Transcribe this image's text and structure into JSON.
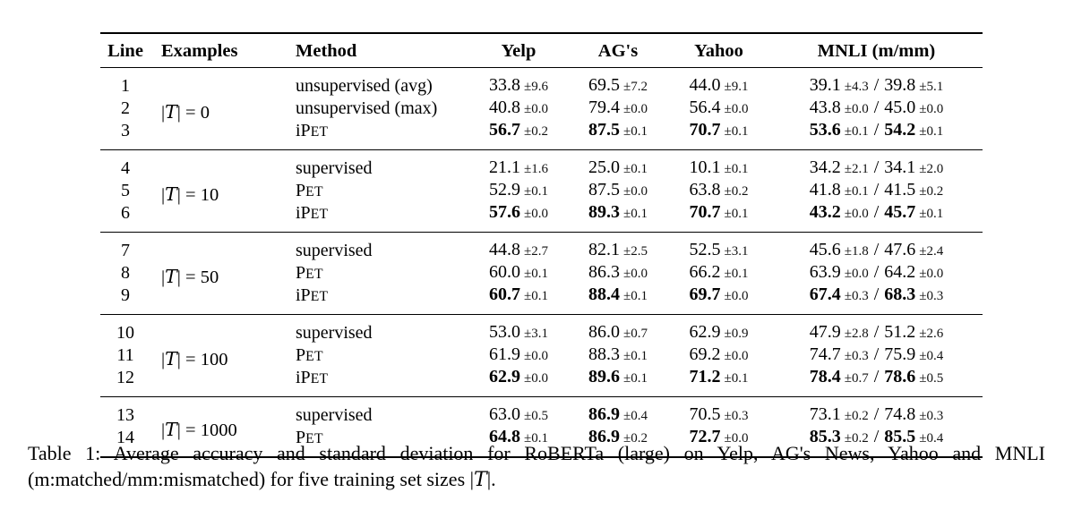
{
  "table": {
    "headers": [
      {
        "key": "line",
        "label": "Line"
      },
      {
        "key": "examples",
        "label": "Examples"
      },
      {
        "key": "method",
        "label": "Method"
      },
      {
        "key": "yelp",
        "label": "Yelp"
      },
      {
        "key": "ags",
        "label": "AG's"
      },
      {
        "key": "yahoo",
        "label": "Yahoo"
      },
      {
        "key": "mnli",
        "label": "MNLI (m/mm)"
      }
    ],
    "pm_symbol": "±",
    "mnli_separator": "/",
    "groups": [
      {
        "examples": "|T| = 0",
        "rows": [
          {
            "line": "1",
            "method": "unsupervised (avg)",
            "yelp": {
              "v": "33.8",
              "sd": "9.6",
              "b": false
            },
            "ags": {
              "v": "69.5",
              "sd": "7.2",
              "b": false
            },
            "yahoo": {
              "v": "44.0",
              "sd": "9.1",
              "b": false
            },
            "mnli": [
              {
                "v": "39.1",
                "sd": "4.3",
                "b": false
              },
              {
                "v": "39.8",
                "sd": "5.1",
                "b": false
              }
            ]
          },
          {
            "line": "2",
            "method": "unsupervised (max)",
            "yelp": {
              "v": "40.8",
              "sd": "0.0",
              "b": false
            },
            "ags": {
              "v": "79.4",
              "sd": "0.0",
              "b": false
            },
            "yahoo": {
              "v": "56.4",
              "sd": "0.0",
              "b": false
            },
            "mnli": [
              {
                "v": "43.8",
                "sd": "0.0",
                "b": false
              },
              {
                "v": "45.0",
                "sd": "0.0",
                "b": false
              }
            ]
          },
          {
            "line": "3",
            "method": "iPET",
            "yelp": {
              "v": "56.7",
              "sd": "0.2",
              "b": true
            },
            "ags": {
              "v": "87.5",
              "sd": "0.1",
              "b": true
            },
            "yahoo": {
              "v": "70.7",
              "sd": "0.1",
              "b": true
            },
            "mnli": [
              {
                "v": "53.6",
                "sd": "0.1",
                "b": true
              },
              {
                "v": "54.2",
                "sd": "0.1",
                "b": true
              }
            ]
          }
        ]
      },
      {
        "examples": "|T| = 10",
        "rows": [
          {
            "line": "4",
            "method": "supervised",
            "yelp": {
              "v": "21.1",
              "sd": "1.6",
              "b": false
            },
            "ags": {
              "v": "25.0",
              "sd": "0.1",
              "b": false
            },
            "yahoo": {
              "v": "10.1",
              "sd": "0.1",
              "b": false
            },
            "mnli": [
              {
                "v": "34.2",
                "sd": "2.1",
                "b": false
              },
              {
                "v": "34.1",
                "sd": "2.0",
                "b": false
              }
            ]
          },
          {
            "line": "5",
            "method": "PET",
            "yelp": {
              "v": "52.9",
              "sd": "0.1",
              "b": false
            },
            "ags": {
              "v": "87.5",
              "sd": "0.0",
              "b": false
            },
            "yahoo": {
              "v": "63.8",
              "sd": "0.2",
              "b": false
            },
            "mnli": [
              {
                "v": "41.8",
                "sd": "0.1",
                "b": false
              },
              {
                "v": "41.5",
                "sd": "0.2",
                "b": false
              }
            ]
          },
          {
            "line": "6",
            "method": "iPET",
            "yelp": {
              "v": "57.6",
              "sd": "0.0",
              "b": true
            },
            "ags": {
              "v": "89.3",
              "sd": "0.1",
              "b": true
            },
            "yahoo": {
              "v": "70.7",
              "sd": "0.1",
              "b": true
            },
            "mnli": [
              {
                "v": "43.2",
                "sd": "0.0",
                "b": true
              },
              {
                "v": "45.7",
                "sd": "0.1",
                "b": true
              }
            ]
          }
        ]
      },
      {
        "examples": "|T| = 50",
        "rows": [
          {
            "line": "7",
            "method": "supervised",
            "yelp": {
              "v": "44.8",
              "sd": "2.7",
              "b": false
            },
            "ags": {
              "v": "82.1",
              "sd": "2.5",
              "b": false
            },
            "yahoo": {
              "v": "52.5",
              "sd": "3.1",
              "b": false
            },
            "mnli": [
              {
                "v": "45.6",
                "sd": "1.8",
                "b": false
              },
              {
                "v": "47.6",
                "sd": "2.4",
                "b": false
              }
            ]
          },
          {
            "line": "8",
            "method": "PET",
            "yelp": {
              "v": "60.0",
              "sd": "0.1",
              "b": false
            },
            "ags": {
              "v": "86.3",
              "sd": "0.0",
              "b": false
            },
            "yahoo": {
              "v": "66.2",
              "sd": "0.1",
              "b": false
            },
            "mnli": [
              {
                "v": "63.9",
                "sd": "0.0",
                "b": false
              },
              {
                "v": "64.2",
                "sd": "0.0",
                "b": false
              }
            ]
          },
          {
            "line": "9",
            "method": "iPET",
            "yelp": {
              "v": "60.7",
              "sd": "0.1",
              "b": true
            },
            "ags": {
              "v": "88.4",
              "sd": "0.1",
              "b": true
            },
            "yahoo": {
              "v": "69.7",
              "sd": "0.0",
              "b": true
            },
            "mnli": [
              {
                "v": "67.4",
                "sd": "0.3",
                "b": true
              },
              {
                "v": "68.3",
                "sd": "0.3",
                "b": true
              }
            ]
          }
        ]
      },
      {
        "examples": "|T| = 100",
        "rows": [
          {
            "line": "10",
            "method": "supervised",
            "yelp": {
              "v": "53.0",
              "sd": "3.1",
              "b": false
            },
            "ags": {
              "v": "86.0",
              "sd": "0.7",
              "b": false
            },
            "yahoo": {
              "v": "62.9",
              "sd": "0.9",
              "b": false
            },
            "mnli": [
              {
                "v": "47.9",
                "sd": "2.8",
                "b": false
              },
              {
                "v": "51.2",
                "sd": "2.6",
                "b": false
              }
            ]
          },
          {
            "line": "11",
            "method": "PET",
            "yelp": {
              "v": "61.9",
              "sd": "0.0",
              "b": false
            },
            "ags": {
              "v": "88.3",
              "sd": "0.1",
              "b": false
            },
            "yahoo": {
              "v": "69.2",
              "sd": "0.0",
              "b": false
            },
            "mnli": [
              {
                "v": "74.7",
                "sd": "0.3",
                "b": false
              },
              {
                "v": "75.9",
                "sd": "0.4",
                "b": false
              }
            ]
          },
          {
            "line": "12",
            "method": "iPET",
            "yelp": {
              "v": "62.9",
              "sd": "0.0",
              "b": true
            },
            "ags": {
              "v": "89.6",
              "sd": "0.1",
              "b": true
            },
            "yahoo": {
              "v": "71.2",
              "sd": "0.1",
              "b": true
            },
            "mnli": [
              {
                "v": "78.4",
                "sd": "0.7",
                "b": true
              },
              {
                "v": "78.6",
                "sd": "0.5",
                "b": true
              }
            ]
          }
        ]
      },
      {
        "examples": "|T| = 1000",
        "rows": [
          {
            "line": "13",
            "method": "supervised",
            "yelp": {
              "v": "63.0",
              "sd": "0.5",
              "b": false
            },
            "ags": {
              "v": "86.9",
              "sd": "0.4",
              "b": true
            },
            "yahoo": {
              "v": "70.5",
              "sd": "0.3",
              "b": false
            },
            "mnli": [
              {
                "v": "73.1",
                "sd": "0.2",
                "b": false
              },
              {
                "v": "74.8",
                "sd": "0.3",
                "b": false
              }
            ]
          },
          {
            "line": "14",
            "method": "PET",
            "yelp": {
              "v": "64.8",
              "sd": "0.1",
              "b": true
            },
            "ags": {
              "v": "86.9",
              "sd": "0.2",
              "b": true
            },
            "yahoo": {
              "v": "72.7",
              "sd": "0.0",
              "b": true
            },
            "mnli": [
              {
                "v": "85.3",
                "sd": "0.2",
                "b": true
              },
              {
                "v": "85.5",
                "sd": "0.4",
                "b": true
              }
            ]
          }
        ]
      }
    ]
  },
  "caption": {
    "text": "Table 1: Average accuracy and standard deviation for RoBERTa (large) on Yelp, AG's News, Yahoo and MNLI (m:matched/mm:mismatched) for five training set sizes |T|."
  }
}
